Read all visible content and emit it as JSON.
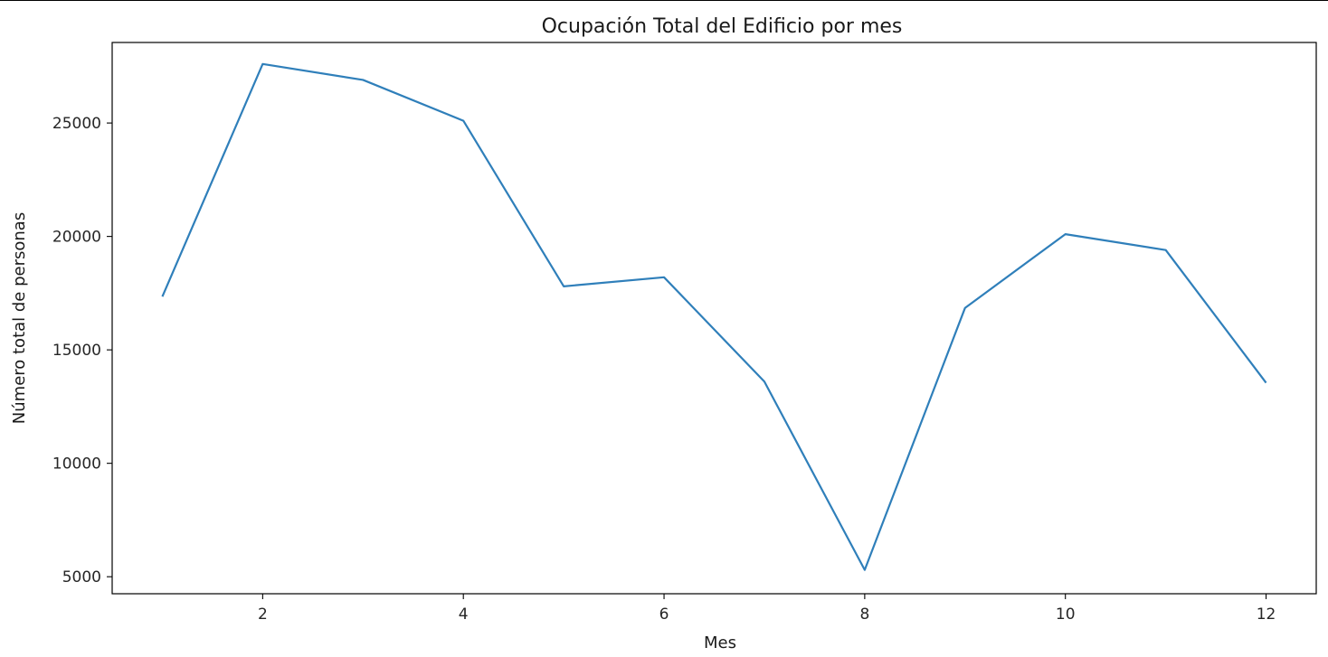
{
  "chart_data": {
    "type": "line",
    "title": "Ocupación Total del Edificio por mes",
    "xlabel": "Mes",
    "ylabel": "Número total de personas",
    "x": [
      1,
      2,
      3,
      4,
      5,
      6,
      7,
      8,
      9,
      10,
      11,
      12
    ],
    "series": [
      {
        "values": [
          17350,
          27600,
          26900,
          25100,
          17800,
          18200,
          13600,
          5300,
          16850,
          20100,
          19400,
          13550
        ],
        "color": "#2f7fba"
      }
    ],
    "xlim": [
      0.5,
      12.5
    ],
    "ylim": [
      4250,
      28550
    ],
    "xticks": [
      2,
      4,
      6,
      8,
      10,
      12
    ],
    "yticks": [
      5000,
      10000,
      15000,
      20000,
      25000
    ],
    "grid": false,
    "legend": "none"
  }
}
